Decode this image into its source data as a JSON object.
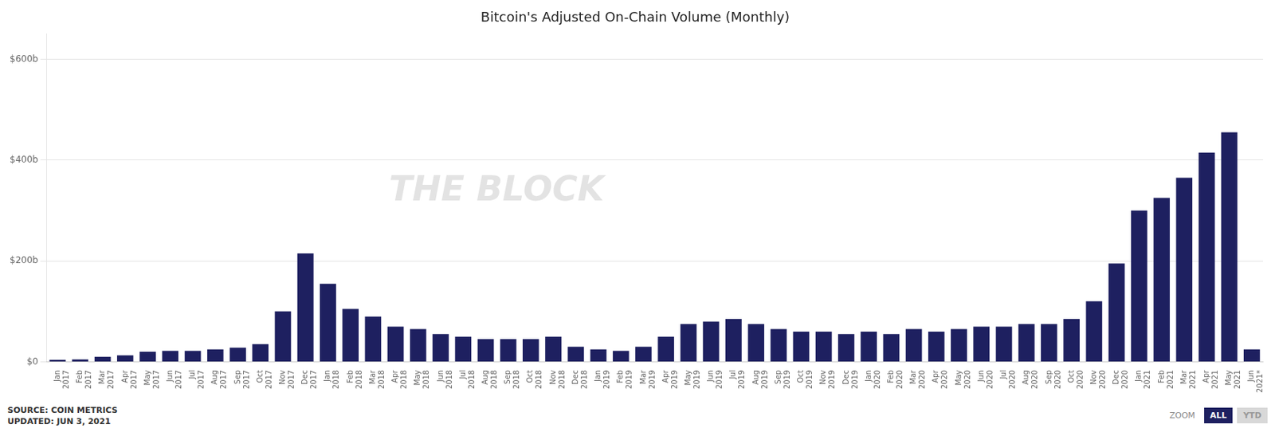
{
  "chart_data": {
    "type": "bar",
    "title": "Bitcoin's Adjusted On-Chain Volume (Monthly)",
    "categories": [
      "Jan\n2017",
      "Feb\n2017",
      "Mar\n2017",
      "Apr\n2017",
      "May\n2017",
      "Jun\n2017",
      "Jul\n2017",
      "Aug\n2017",
      "Sep\n2017",
      "Oct\n2017",
      "Nov\n2017",
      "Dec\n2017",
      "Jan\n2018",
      "Feb\n2018",
      "Mar\n2018",
      "Apr\n2018",
      "May\n2018",
      "Jun\n2018",
      "Jul\n2018",
      "Aug\n2018",
      "Sep\n2018",
      "Oct\n2018",
      "Nov\n2018",
      "Dec\n2018",
      "Jan\n2019",
      "Feb\n2019",
      "Mar\n2019",
      "Apr\n2019",
      "May\n2019",
      "Jun\n2019",
      "Jul\n2019",
      "Aug\n2019",
      "Sep\n2019",
      "Oct\n2019",
      "Nov\n2019",
      "Dec\n2019",
      "Jan\n2020",
      "Feb\n2020",
      "Mar\n2020",
      "Apr\n2020",
      "May\n2020",
      "Jun\n2020",
      "Jul\n2020",
      "Aug\n2020",
      "Sep\n2020",
      "Oct\n2020",
      "Nov\n2020",
      "Dec\n2020",
      "Jan\n2021",
      "Feb\n2021",
      "Mar\n2021",
      "Apr\n2021",
      "May\n2021",
      "Jun\n2021*"
    ],
    "values": [
      4000000000,
      5000000000,
      10000000000,
      13000000000,
      20000000000,
      22000000000,
      22000000000,
      25000000000,
      28000000000,
      35000000000,
      100000000000,
      215000000000,
      155000000000,
      105000000000,
      90000000000,
      70000000000,
      65000000000,
      55000000000,
      50000000000,
      45000000000,
      45000000000,
      45000000000,
      50000000000,
      30000000000,
      25000000000,
      22000000000,
      30000000000,
      50000000000,
      75000000000,
      80000000000,
      85000000000,
      75000000000,
      65000000000,
      60000000000,
      60000000000,
      55000000000,
      60000000000,
      55000000000,
      65000000000,
      60000000000,
      65000000000,
      70000000000,
      70000000000,
      75000000000,
      75000000000,
      85000000000,
      120000000000,
      195000000000,
      300000000000,
      325000000000,
      365000000000,
      415000000000,
      455000000000,
      25000000000
    ],
    "color": "#1e2060",
    "ylim": [
      0,
      650000000000
    ],
    "yticks": [
      {
        "value": 0,
        "label": "$0"
      },
      {
        "value": 200000000000,
        "label": "$200b"
      },
      {
        "value": 400000000000,
        "label": "$400b"
      },
      {
        "value": 600000000000,
        "label": "$600b"
      }
    ],
    "grid": true,
    "annotations": [
      "THE BLOCK",
      "SOURCE: COIN METRICS",
      "UPDATED: JUN 3, 2021",
      "ZOOM",
      "ALL",
      "YTD"
    ]
  }
}
